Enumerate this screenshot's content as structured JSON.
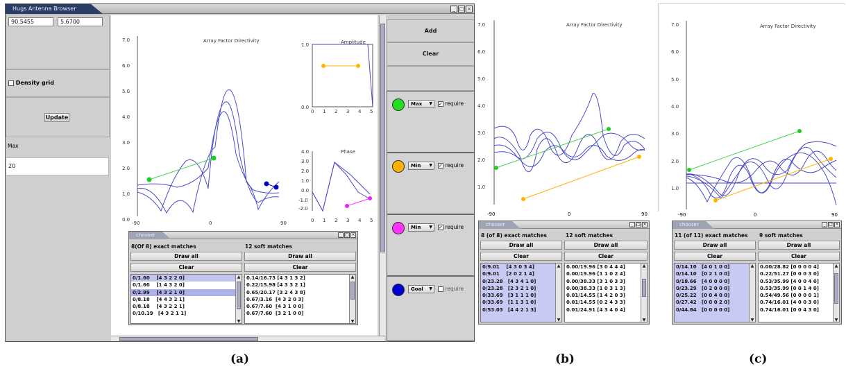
{
  "window": {
    "title": "Hugs Antenna Browser"
  },
  "left": {
    "field1": "90.5455",
    "field2": "5.6700",
    "density_label": "Density grid",
    "update_label": "Update",
    "max_label": "Max",
    "max_value": "20"
  },
  "right": {
    "add_label": "Add",
    "clear_label": "Clear",
    "constraints": [
      {
        "color": "#22dd22",
        "mode": "Max",
        "require_label": "require",
        "required": true
      },
      {
        "color": "#ffb300",
        "mode": "Min",
        "require_label": "require",
        "required": true
      },
      {
        "color": "#ff33ff",
        "mode": "Min",
        "require_label": "require",
        "required": true
      },
      {
        "color": "#0000cc",
        "mode": "Goal",
        "require_label": "require",
        "required": false
      }
    ]
  },
  "plots": {
    "main": {
      "title": "Array Factor Directivity",
      "yticks": [
        "7.0",
        "6.0",
        "5.0",
        "4.0",
        "3.0",
        "2.0",
        "1.0",
        "0.0"
      ],
      "xticks": [
        "-90",
        "0",
        "90"
      ]
    },
    "amplitude": {
      "title": "Amplitude",
      "yticks": [
        "1.0",
        "0.0"
      ],
      "xticks": [
        "0",
        "1",
        "2",
        "3",
        "4",
        "5"
      ]
    },
    "phase": {
      "title": "Phase",
      "yticks": [
        "4.0",
        "3.0",
        "2.0",
        "1.0",
        "0.0",
        "-1.0",
        "-2.0"
      ],
      "xticks": [
        "0",
        "1",
        "2",
        "3",
        "4",
        "5"
      ]
    },
    "b": {
      "title": "Array Factor Directivity",
      "yticks": [
        "7.0",
        "6.0",
        "5.0",
        "4.0",
        "3.0",
        "2.0",
        "1.0"
      ],
      "xticks": [
        "-90",
        "0",
        "90"
      ]
    },
    "c": {
      "title": "Array Factor Directivity",
      "yticks": [
        "7.0",
        "6.0",
        "5.0",
        "4.0",
        "3.0",
        "2.0",
        "1.0"
      ],
      "xticks": [
        "-90",
        "0",
        "90"
      ]
    }
  },
  "choosers": {
    "a": {
      "tab": "chooser",
      "exact_header": "8(Of 8) exact matches",
      "soft_header": "12 soft matches",
      "draw_all": "Draw all",
      "clear": "Clear",
      "exact": [
        "0/1.60    [4 3 2 2 0]",
        "0/1.60    [1 4 3 2 0]",
        "0/2.99    [4 3 2 1 0]",
        "0/8.18    [4 4 3 2 1]",
        "0/8.18    [4 3 2 2 1]",
        "0/10.19   [4 3 2 1 1]"
      ],
      "soft": [
        "0.14/16.73 [4 3 1 3 2]",
        "0.22/15.98 [4 3 3 2 1]",
        "0.65/20.17 [3 2 4 3 8]",
        "0.67/3.16  [4 3 2 0 3]",
        "0.67/7.60  [4 3 1 0 0]",
        "0.67/7.60  [3 2 1 0 0]"
      ]
    },
    "b": {
      "tab": "chooser",
      "exact_header": "8 (of 8) exact matches",
      "soft_header": "12 soft matches",
      "draw_all": "Draw all",
      "clear": "Clear",
      "exact": [
        "0/9.01    [4 3 0 3 4]",
        "0/9.01    [2 0 2 1 4]",
        "0/23.28   [4 3 4 1 0]",
        "0/23.28   [2 3 2 1 0]",
        "0/33.69   [3 1 1 1 0]",
        "0/33.69   [1 1 3 1 0]",
        "0/53.03   [4 4 2 1 3]"
      ],
      "soft": [
        "0.00/19.96 [3 0 4 4 4]",
        "0.00/19.96 [1 1 0 2 4]",
        "0.00/38.33 [3 1 0 3 3]",
        "0.00/38.33 [1 0 3 1 3]",
        "0.01/14.55 [1 4 2 0 3]",
        "0.01/14.55 [0 2 4 3 3]",
        "0.01/24.91 [4 3 4 0 4]"
      ]
    },
    "c": {
      "tab": "chooser",
      "exact_header": "11 (of 11) exact matches",
      "soft_header": "9 soft matches",
      "draw_all": "Draw all",
      "clear": "Clear",
      "exact": [
        "0/14.10   [4 0 1 0 0]",
        "0/14.10   [0 2 1 0 0]",
        "0/18.66   [4 0 0 0 0]",
        "0/23.29   [0 2 0 0 0]",
        "0/25.22   [0 0 4 0 0]",
        "0/27.42   [0 0 0 2 0]",
        "0/44.84   [0 0 0 0 0]"
      ],
      "soft": [
        "0.00/28.82 [0 0 0 0 4]",
        "0.22/51.27 [0 0 0 3 0]",
        "0.53/35.99 [4 0 0 4 0]",
        "0.53/35.99 [0 0 1 4 0]",
        "0.54/49.56 [0 0 0 0 1]",
        "0.74/16.01 [4 0 0 3 0]",
        "0.74/16.01 [0 0 4 3 0]"
      ]
    }
  },
  "captions": {
    "a": "(a)",
    "b": "(b)",
    "c": "(c)"
  }
}
